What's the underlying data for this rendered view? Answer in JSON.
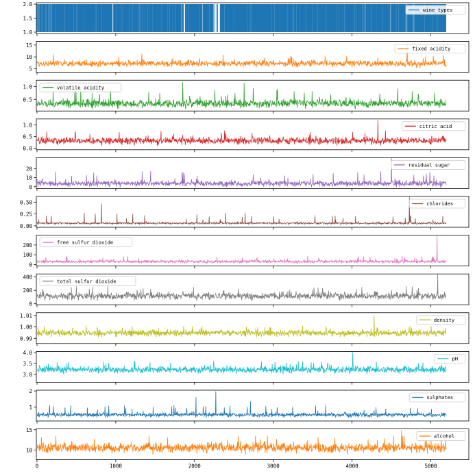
{
  "chart_data": {
    "type": "line",
    "layout": "stacked-subplots",
    "shared_x": true,
    "x_range": [
      0,
      5196
    ],
    "x_ticks": [
      0,
      1000,
      2000,
      3000,
      4000,
      5000
    ],
    "x_tick_labels": [
      "0",
      "1000",
      "2000",
      "3000",
      "4000",
      "5000"
    ],
    "panels": [
      {
        "name": "wine types",
        "color": "#1f77b4",
        "legend_loc": "upper-right",
        "ylim": [
          0.95,
          2.05
        ],
        "yticks": [
          1.0,
          1.5,
          2.0
        ],
        "ytick_labels": [
          "1.0",
          "1.5",
          "2.0"
        ],
        "base": 1.0,
        "jitter": 0.0,
        "spike": 0.0,
        "binary": true,
        "spikes": []
      },
      {
        "name": "fixed acidity",
        "color": "#ff7f0e",
        "legend_loc": "upper-right",
        "ylim": [
          3.5,
          16.5
        ],
        "yticks": [
          5,
          10,
          15
        ],
        "ytick_labels": [
          "5",
          "10",
          "15"
        ],
        "base": 7.2,
        "jitter": 1.3,
        "spike": 4.5,
        "spikes": [
          [
            4700,
            15.6
          ]
        ]
      },
      {
        "name": "volatile acidity",
        "color": "#2ca02c",
        "legend_loc": "upper-left",
        "ylim": [
          0.05,
          1.25
        ],
        "yticks": [
          0.5,
          1.0
        ],
        "ytick_labels": [
          "0.5",
          "1.0"
        ],
        "base": 0.34,
        "jitter": 0.16,
        "spike": 0.6,
        "spikes": [
          [
            1850,
            1.18
          ],
          [
            2630,
            1.15
          ]
        ]
      },
      {
        "name": "citric acid",
        "color": "#d62728",
        "legend_loc": "upper-right",
        "ylim": [
          -0.07,
          1.25
        ],
        "yticks": [
          0.0,
          0.5,
          1.0
        ],
        "ytick_labels": [
          "0.0",
          "0.5",
          "1.0"
        ],
        "base": 0.31,
        "jitter": 0.15,
        "spike": 0.45,
        "spikes": [
          [
            4330,
            1.2
          ]
        ]
      },
      {
        "name": "residual sugar",
        "color": "#9467bd",
        "legend_loc": "upper-right",
        "ylim": [
          -2,
          32
        ],
        "yticks": [
          0,
          10,
          20
        ],
        "ytick_labels": [
          "0",
          "10",
          "20"
        ],
        "base": 3.5,
        "jitter": 3.2,
        "spike": 14.0,
        "spikes": [
          [
            4500,
            31.6
          ]
        ]
      },
      {
        "name": "chlorides",
        "color": "#8c564b",
        "legend_loc": "upper-right",
        "ylim": [
          -0.03,
          0.62
        ],
        "yticks": [
          0.0,
          0.25,
          0.5
        ],
        "ytick_labels": [
          "0.00",
          "0.25",
          "0.50"
        ],
        "base": 0.055,
        "jitter": 0.02,
        "spike": 0.22,
        "spikes": [
          [
            4730,
            0.61
          ],
          [
            820,
            0.47
          ]
        ]
      },
      {
        "name": "free sulfur dioxide",
        "color": "#e377c2",
        "legend_loc": "upper-left",
        "ylim": [
          -15,
          300
        ],
        "yticks": [
          0,
          100,
          200
        ],
        "ytick_labels": [
          "0",
          "100",
          "200"
        ],
        "base": 30,
        "jitter": 15,
        "spike": 60,
        "spikes": [
          [
            5080,
            289
          ]
        ]
      },
      {
        "name": "total sulfur dioxide",
        "color": "#7f7f7f",
        "legend_loc": "upper-left",
        "ylim": [
          -15,
          445
        ],
        "yticks": [
          0,
          200,
          400
        ],
        "ytick_labels": [
          "0",
          "200",
          "400"
        ],
        "base": 115,
        "jitter": 55,
        "spike": 150,
        "spikes": [
          [
            5090,
            440
          ]
        ]
      },
      {
        "name": "density",
        "color": "#bcbd22",
        "legend_loc": "upper-right",
        "ylim": [
          0.9855,
          1.0125
        ],
        "yticks": [
          0.99,
          1.0,
          1.01
        ],
        "ytick_labels": [
          "0.99",
          "1.00",
          "1.01"
        ],
        "base": 0.9947,
        "jitter": 0.0028,
        "spike": 0.0065,
        "spikes": [
          [
            4280,
            1.0103
          ]
        ]
      },
      {
        "name": "pH",
        "color": "#17becf",
        "legend_loc": "upper-right",
        "ylim": [
          2.65,
          4.05
        ],
        "yticks": [
          3.0,
          3.5,
          4.0
        ],
        "ytick_labels": [
          "3.0",
          "3.5",
          "4.0"
        ],
        "base": 3.22,
        "jitter": 0.15,
        "spike": 0.4,
        "spikes": [
          [
            4010,
            4.01
          ]
        ]
      },
      {
        "name": "sulphates",
        "color": "#1f77b4",
        "legend_loc": "upper-right",
        "ylim": [
          0.15,
          2.05
        ],
        "yticks": [
          1,
          2
        ],
        "ytick_labels": [
          "1",
          "2"
        ],
        "base": 0.53,
        "jitter": 0.13,
        "spike": 0.6,
        "spikes": [
          [
            2270,
            1.98
          ],
          [
            2020,
            1.62
          ],
          [
            2710,
            1.36
          ]
        ]
      },
      {
        "name": "alcohol",
        "color": "#ff7f0e",
        "legend_loc": "upper-right",
        "ylim": [
          7.6,
          15.2
        ],
        "yticks": [
          10,
          15
        ],
        "ytick_labels": [
          "10",
          "15"
        ],
        "base": 10.5,
        "jitter": 1.2,
        "spike": 3.0,
        "spikes": [
          [
            4630,
            14.8
          ]
        ]
      }
    ]
  }
}
